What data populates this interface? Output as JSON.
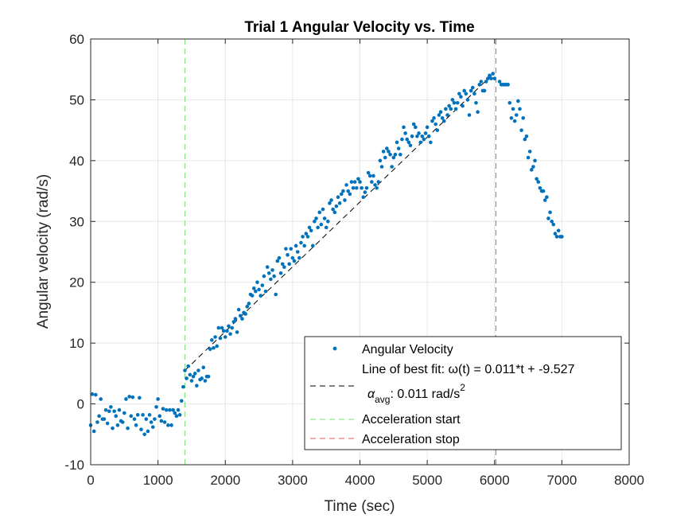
{
  "chart_data": {
    "type": "scatter",
    "title": "Trial 1 Angular Velocity vs. Time",
    "xlabel": "Time (sec)",
    "ylabel": "Angular velocity (rad/s)",
    "xlim": [
      0,
      8000
    ],
    "ylim": [
      -10,
      60
    ],
    "xticks": [
      0,
      1000,
      2000,
      3000,
      4000,
      5000,
      6000,
      7000,
      8000
    ],
    "yticks": [
      -10,
      0,
      10,
      20,
      30,
      40,
      50,
      60
    ],
    "grid": true,
    "legend_position": "bottom-right",
    "colors": {
      "data": "#0072BD",
      "fit": "#000000",
      "start": "#77DD77",
      "stop": "#D95F5F",
      "grid": "#E6E6E6",
      "axis": "#262626"
    },
    "series": [
      {
        "name": "Angular Velocity",
        "kind": "scatter",
        "points": [
          [
            0,
            -3.5
          ],
          [
            25,
            1.6
          ],
          [
            50,
            -4.5
          ],
          [
            75,
            1.5
          ],
          [
            100,
            -3.0
          ],
          [
            125,
            -2.0
          ],
          [
            150,
            0.8
          ],
          [
            175,
            -2.5
          ],
          [
            200,
            -2.5
          ],
          [
            225,
            -1.0
          ],
          [
            250,
            -3.2
          ],
          [
            275,
            -1.2
          ],
          [
            300,
            -0.5
          ],
          [
            325,
            -4.0
          ],
          [
            350,
            -1.2
          ],
          [
            375,
            -2.0
          ],
          [
            400,
            -3.5
          ],
          [
            425,
            -1.0
          ],
          [
            450,
            -2.8
          ],
          [
            475,
            -3.0
          ],
          [
            500,
            -1.5
          ],
          [
            525,
            0.8
          ],
          [
            550,
            -4.0
          ],
          [
            575,
            1.2
          ],
          [
            600,
            -2.0
          ],
          [
            625,
            1.1
          ],
          [
            650,
            -2.5
          ],
          [
            675,
            -3.5
          ],
          [
            700,
            -1.8
          ],
          [
            725,
            1.0
          ],
          [
            750,
            -4.2
          ],
          [
            775,
            -1.8
          ],
          [
            800,
            -5.0
          ],
          [
            825,
            -2.5
          ],
          [
            850,
            -4.5
          ],
          [
            875,
            -1.8
          ],
          [
            900,
            -3.0
          ],
          [
            925,
            -3.8
          ],
          [
            950,
            -2.5
          ],
          [
            975,
            -0.5
          ],
          [
            1000,
            0.8
          ],
          [
            1025,
            -2.0
          ],
          [
            1050,
            -2.8
          ],
          [
            1075,
            -0.8
          ],
          [
            1100,
            -3.0
          ],
          [
            1125,
            -1.0
          ],
          [
            1150,
            -3.5
          ],
          [
            1175,
            -1.0
          ],
          [
            1200,
            -3.5
          ],
          [
            1225,
            -1.0
          ],
          [
            1250,
            -1.5
          ],
          [
            1275,
            -2.0
          ],
          [
            1300,
            -1.0
          ],
          [
            1325,
            -1.8
          ],
          [
            1350,
            0.5
          ],
          [
            1375,
            2.8
          ],
          [
            1400,
            5.5
          ],
          [
            1425,
            4.2
          ],
          [
            1450,
            6.2
          ],
          [
            1475,
            4.8
          ],
          [
            1500,
            3.8
          ],
          [
            1525,
            4.5
          ],
          [
            1550,
            5.0
          ],
          [
            1575,
            3.0
          ],
          [
            1600,
            5.5
          ],
          [
            1625,
            4.0
          ],
          [
            1650,
            4.2
          ],
          [
            1675,
            6.0
          ],
          [
            1700,
            3.8
          ],
          [
            1725,
            4.5
          ],
          [
            1750,
            4.5
          ],
          [
            1775,
            9.0
          ],
          [
            1800,
            10.5
          ],
          [
            1825,
            9.2
          ],
          [
            1850,
            11.0
          ],
          [
            1875,
            9.5
          ],
          [
            1900,
            12.5
          ],
          [
            1925,
            10.8
          ],
          [
            1950,
            12.5
          ],
          [
            1975,
            12.0
          ],
          [
            2000,
            11.0
          ],
          [
            2025,
            12.0
          ],
          [
            2050,
            12.8
          ],
          [
            2075,
            11.5
          ],
          [
            2100,
            12.5
          ],
          [
            2125,
            13.5
          ],
          [
            2150,
            14.0
          ],
          [
            2175,
            11.8
          ],
          [
            2200,
            15.5
          ],
          [
            2225,
            14.5
          ],
          [
            2250,
            14.0
          ],
          [
            2275,
            15.0
          ],
          [
            2300,
            14.8
          ],
          [
            2325,
            16.0
          ],
          [
            2350,
            16.5
          ],
          [
            2375,
            18.0
          ],
          [
            2400,
            17.8
          ],
          [
            2425,
            19.0
          ],
          [
            2450,
            18.5
          ],
          [
            2475,
            20.0
          ],
          [
            2500,
            18.8
          ],
          [
            2525,
            17.8
          ],
          [
            2550,
            19.5
          ],
          [
            2575,
            21.0
          ],
          [
            2600,
            18.5
          ],
          [
            2625,
            22.5
          ],
          [
            2650,
            21.5
          ],
          [
            2675,
            20.5
          ],
          [
            2700,
            22.0
          ],
          [
            2725,
            21.0
          ],
          [
            2750,
            18.0
          ],
          [
            2775,
            23.5
          ],
          [
            2800,
            24.0
          ],
          [
            2825,
            21.5
          ],
          [
            2850,
            23.0
          ],
          [
            2875,
            22.5
          ],
          [
            2900,
            25.5
          ],
          [
            2925,
            24.5
          ],
          [
            2950,
            23.0
          ],
          [
            2975,
            25.5
          ],
          [
            3000,
            24.0
          ],
          [
            3025,
            23.5
          ],
          [
            3050,
            26.0
          ],
          [
            3075,
            25.0
          ],
          [
            3100,
            24.0
          ],
          [
            3125,
            26.5
          ],
          [
            3150,
            27.5
          ],
          [
            3175,
            26.0
          ],
          [
            3200,
            28.0
          ],
          [
            3225,
            27.5
          ],
          [
            3250,
            29.0
          ],
          [
            3275,
            28.5
          ],
          [
            3300,
            26.0
          ],
          [
            3325,
            30.0
          ],
          [
            3350,
            30.5
          ],
          [
            3375,
            29.0
          ],
          [
            3400,
            31.5
          ],
          [
            3425,
            29.5
          ],
          [
            3450,
            32.0
          ],
          [
            3475,
            30.5
          ],
          [
            3500,
            29.0
          ],
          [
            3525,
            30.0
          ],
          [
            3550,
            33.0
          ],
          [
            3575,
            33.5
          ],
          [
            3600,
            32.0
          ],
          [
            3625,
            31.5
          ],
          [
            3650,
            32.5
          ],
          [
            3675,
            34.0
          ],
          [
            3700,
            33.0
          ],
          [
            3725,
            34.5
          ],
          [
            3750,
            35.0
          ],
          [
            3775,
            33.5
          ],
          [
            3800,
            36.0
          ],
          [
            3825,
            35.0
          ],
          [
            3850,
            34.5
          ],
          [
            3875,
            36.5
          ],
          [
            3900,
            35.5
          ],
          [
            3925,
            36.5
          ],
          [
            3950,
            35.5
          ],
          [
            3975,
            37.0
          ],
          [
            4000,
            36.5
          ],
          [
            4025,
            35.5
          ],
          [
            4050,
            34.0
          ],
          [
            4075,
            34.8
          ],
          [
            4100,
            35.5
          ],
          [
            4125,
            38.0
          ],
          [
            4150,
            37.5
          ],
          [
            4175,
            36.5
          ],
          [
            4200,
            37.5
          ],
          [
            4225,
            36.0
          ],
          [
            4250,
            35.5
          ],
          [
            4275,
            36.5
          ],
          [
            4300,
            40.0
          ],
          [
            4325,
            39.0
          ],
          [
            4350,
            41.5
          ],
          [
            4375,
            40.5
          ],
          [
            4400,
            42.0
          ],
          [
            4425,
            41.5
          ],
          [
            4450,
            41.0
          ],
          [
            4475,
            39.0
          ],
          [
            4500,
            40.5
          ],
          [
            4525,
            41.0
          ],
          [
            4550,
            43.0
          ],
          [
            4575,
            42.0
          ],
          [
            4600,
            41.0
          ],
          [
            4625,
            43.5
          ],
          [
            4650,
            45.5
          ],
          [
            4675,
            44.5
          ],
          [
            4700,
            43.5
          ],
          [
            4725,
            43.0
          ],
          [
            4750,
            42.5
          ],
          [
            4775,
            44.0
          ],
          [
            4800,
            46.0
          ],
          [
            4825,
            45.5
          ],
          [
            4850,
            44.0
          ],
          [
            4875,
            44.5
          ],
          [
            4900,
            43.0
          ],
          [
            4925,
            44.0
          ],
          [
            4950,
            43.5
          ],
          [
            4975,
            44.5
          ],
          [
            5000,
            45.5
          ],
          [
            5025,
            44.0
          ],
          [
            5050,
            43.0
          ],
          [
            5075,
            46.5
          ],
          [
            5100,
            47.0
          ],
          [
            5125,
            46.0
          ],
          [
            5150,
            45.0
          ],
          [
            5175,
            47.5
          ],
          [
            5200,
            48.0
          ],
          [
            5225,
            47.0
          ],
          [
            5250,
            46.5
          ],
          [
            5275,
            48.5
          ],
          [
            5300,
            47.5
          ],
          [
            5325,
            49.0
          ],
          [
            5350,
            48.5
          ],
          [
            5375,
            50.0
          ],
          [
            5400,
            49.5
          ],
          [
            5425,
            48.5
          ],
          [
            5450,
            49.5
          ],
          [
            5475,
            51.0
          ],
          [
            5500,
            50.5
          ],
          [
            5525,
            49.0
          ],
          [
            5550,
            51.5
          ],
          [
            5575,
            51.0
          ],
          [
            5600,
            50.0
          ],
          [
            5625,
            47.5
          ],
          [
            5650,
            51.5
          ],
          [
            5675,
            52.0
          ],
          [
            5700,
            51.0
          ],
          [
            5725,
            49.5
          ],
          [
            5750,
            48.0
          ],
          [
            5775,
            52.5
          ],
          [
            5800,
            53.0
          ],
          [
            5825,
            51.5
          ],
          [
            5850,
            51.5
          ],
          [
            5875,
            53.0
          ],
          [
            5900,
            53.5
          ],
          [
            5925,
            54.0
          ],
          [
            5950,
            53.5
          ],
          [
            5975,
            54.3
          ],
          [
            6000,
            53.5
          ],
          [
            6075,
            53.0
          ],
          [
            6100,
            52.5
          ],
          [
            6125,
            52.5
          ],
          [
            6150,
            52.5
          ],
          [
            6175,
            52.5
          ],
          [
            6200,
            52.5
          ],
          [
            6225,
            49.5
          ],
          [
            6250,
            47.0
          ],
          [
            6275,
            48.5
          ],
          [
            6300,
            46.5
          ],
          [
            6325,
            47.5
          ],
          [
            6350,
            49.8
          ],
          [
            6375,
            48.5
          ],
          [
            6400,
            45.0
          ],
          [
            6425,
            47.0
          ],
          [
            6450,
            43.5
          ],
          [
            6475,
            44.0
          ],
          [
            6500,
            40.5
          ],
          [
            6525,
            41.5
          ],
          [
            6550,
            38.5
          ],
          [
            6575,
            39.0
          ],
          [
            6600,
            40.0
          ],
          [
            6625,
            37.0
          ],
          [
            6650,
            36.5
          ],
          [
            6675,
            35.5
          ],
          [
            6700,
            35.0
          ],
          [
            6725,
            35.0
          ],
          [
            6750,
            33.5
          ],
          [
            6775,
            34.0
          ],
          [
            6800,
            30.5
          ],
          [
            6825,
            31.5
          ],
          [
            6850,
            30.0
          ],
          [
            6875,
            29.5
          ],
          [
            6900,
            28.0
          ],
          [
            6925,
            27.5
          ],
          [
            6950,
            28.5
          ],
          [
            6975,
            27.5
          ],
          [
            7000,
            27.5
          ]
        ]
      },
      {
        "name": "Line of best fit: ω(t) = 0.011*t + -9.527",
        "kind": "line",
        "style": "dashed",
        "x": [
          1400,
          6000
        ],
        "y": [
          5.5,
          54.5
        ]
      },
      {
        "name": "Acceleration start",
        "kind": "vline",
        "style": "dashed",
        "x": 1400
      },
      {
        "name": "Acceleration stop",
        "kind": "vline",
        "style": "dashed",
        "x": 6020
      }
    ],
    "legend": {
      "entries": [
        "Angular Velocity",
        "Line of best fit: ω(t) = 0.011*t + -9.527",
        "Acceleration start",
        "Acceleration stop"
      ],
      "extra_label_symbol": "α",
      "extra_label_sub": "avg",
      "extra_label_text": ": 0.011 rad/s",
      "extra_label_sup": "2"
    }
  }
}
